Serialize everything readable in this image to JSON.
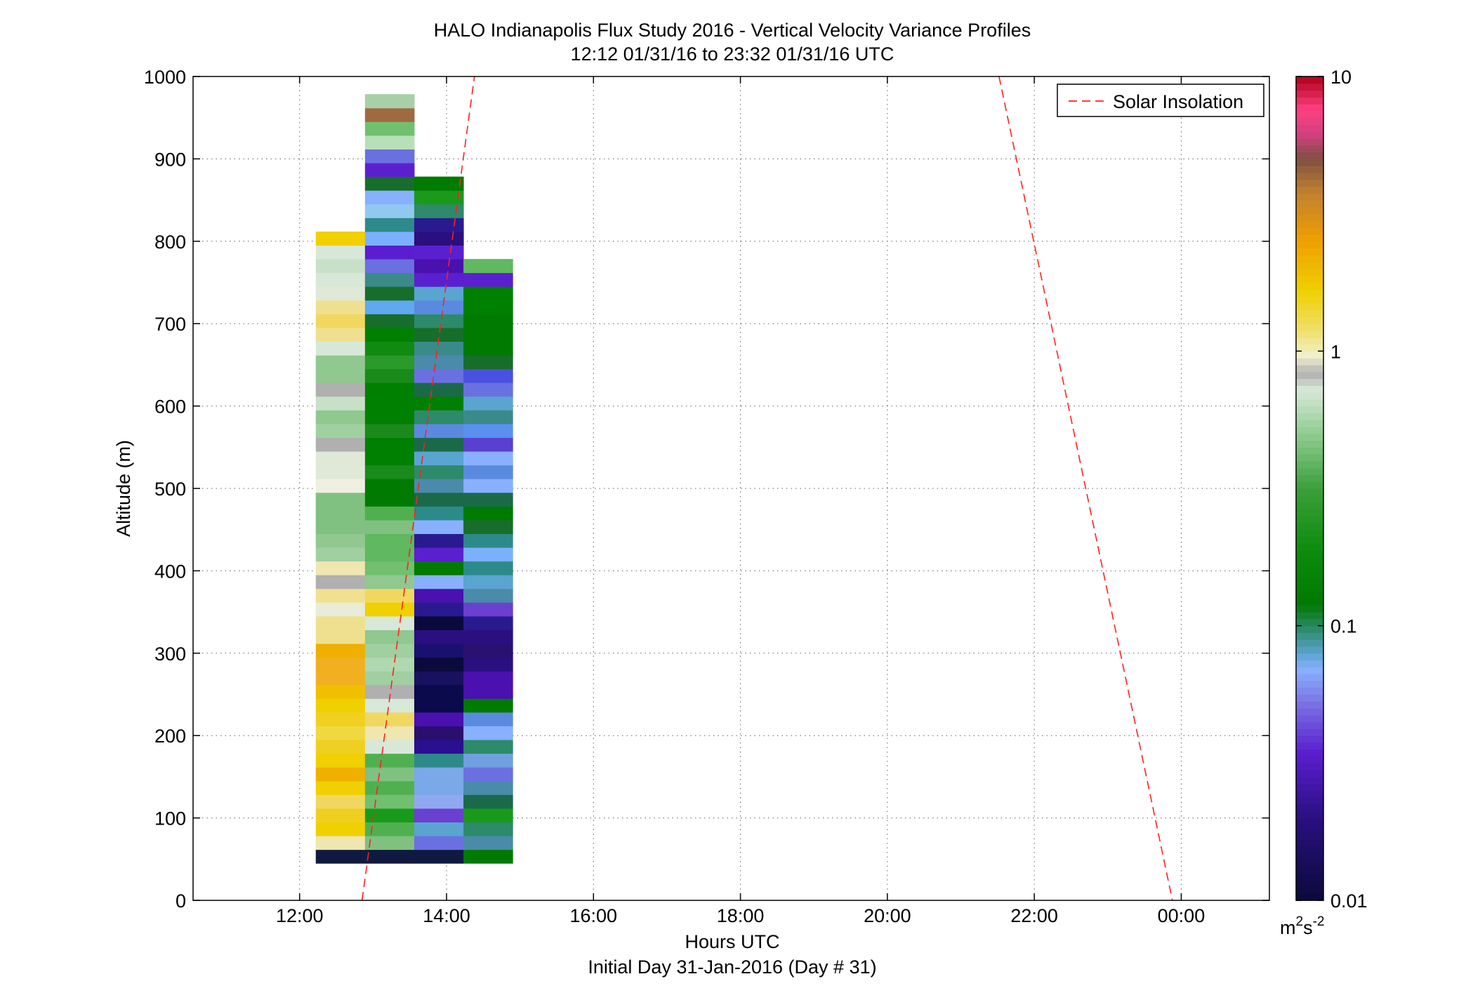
{
  "chart_data": {
    "type": "heatmap",
    "title": "HALO Indianapolis Flux Study 2016 - Vertical Velocity Variance Profiles",
    "subtitle": "12:12 01/31/16 to 23:32 01/31/16  UTC",
    "xlabel": "Hours UTC",
    "xlabel2": "Initial Day 31-Jan-2016 (Day # 31)",
    "ylabel": "Altitude (m)",
    "xlim": [
      10.55,
      25.2
    ],
    "ylim": [
      0,
      1000
    ],
    "x_ticks": [
      {
        "value": 12,
        "label": "12:00"
      },
      {
        "value": 14,
        "label": "14:00"
      },
      {
        "value": 16,
        "label": "16:00"
      },
      {
        "value": 18,
        "label": "18:00"
      },
      {
        "value": 20,
        "label": "20:00"
      },
      {
        "value": 22,
        "label": "22:00"
      },
      {
        "value": 24,
        "label": "00:00"
      }
    ],
    "y_ticks": [
      0,
      100,
      200,
      300,
      400,
      500,
      600,
      700,
      800,
      900,
      1000
    ],
    "grid": true,
    "legend": {
      "placement": "top-right",
      "entries": [
        {
          "label": "Solar Insolation",
          "color": "#ff2020",
          "style": "dashed"
        }
      ]
    },
    "solar_insolation": [
      {
        "x": [
          12.85,
          14.38
        ],
        "y": [
          0,
          1000
        ]
      },
      {
        "x": [
          21.52,
          23.88
        ],
        "y": [
          1000,
          0
        ]
      }
    ],
    "colorbar": {
      "scale": "log",
      "min": 0.01,
      "max": 10,
      "ticks": [
        {
          "value": 0.01,
          "label": "0.01"
        },
        {
          "value": 0.1,
          "label": "0.1"
        },
        {
          "value": 1,
          "label": "1"
        },
        {
          "value": 10,
          "label": "10"
        }
      ],
      "unit_base": "m",
      "unit_sup1": "2",
      "unit_mid": "s",
      "unit_sup2": "-2",
      "stops": [
        {
          "v": 0.0,
          "c": "#0a0a3c"
        },
        {
          "v": 0.1,
          "c": "#2a0f80"
        },
        {
          "v": 0.18,
          "c": "#5a1ed0"
        },
        {
          "v": 0.24,
          "c": "#7a74e4"
        },
        {
          "v": 0.28,
          "c": "#88b0ff"
        },
        {
          "v": 0.3,
          "c": "#5aa4d0"
        },
        {
          "v": 0.33,
          "c": "#2d8a6a"
        },
        {
          "v": 0.36,
          "c": "#007a00"
        },
        {
          "v": 0.42,
          "c": "#0b8a0b"
        },
        {
          "v": 0.5,
          "c": "#3aa03a"
        },
        {
          "v": 0.56,
          "c": "#88c888"
        },
        {
          "v": 0.62,
          "c": "#d8e8d8"
        },
        {
          "v": 0.64,
          "c": "#b0b0b0"
        },
        {
          "v": 0.66,
          "c": "#f0f0d0"
        },
        {
          "v": 0.69,
          "c": "#f0e070"
        },
        {
          "v": 0.74,
          "c": "#f0d000"
        },
        {
          "v": 0.8,
          "c": "#f0a000"
        },
        {
          "v": 0.86,
          "c": "#c08030"
        },
        {
          "v": 0.9,
          "c": "#805040"
        },
        {
          "v": 0.93,
          "c": "#d04080"
        },
        {
          "v": 0.96,
          "c": "#ff4080"
        },
        {
          "v": 1.0,
          "c": "#b0001a"
        }
      ]
    },
    "bin_height_m": 16.67,
    "columns": [
      {
        "x0": 12.22,
        "x1": 12.89,
        "z0": 45,
        "cells": [
          "#101a40",
          "#efe6b0",
          "#f0d000",
          "#efd020",
          "#f0d860",
          "#f0d000",
          "#f0b000",
          "#f0d000",
          "#efd020",
          "#f0d840",
          "#f0d020",
          "#f0d000",
          "#f0c000",
          "#f0b020",
          "#f0b020",
          "#f0b000",
          "#efe090",
          "#efe090",
          "#e8ecd8",
          "#f0e090",
          "#b0b0b0",
          "#efe6b0",
          "#a0d0a0",
          "#90c890",
          "#80c080",
          "#80c080",
          "#80c080",
          "#efefe0",
          "#e0e8d8",
          "#e0e8d8",
          "#b0b0b0",
          "#a0d0a0",
          "#90c890",
          "#c8e0c8",
          "#b0b0b0",
          "#90c890",
          "#90c890",
          "#d8e8d8",
          "#efe090",
          "#f0d860",
          "#efe090",
          "#e0e8d8",
          "#d8e8d8",
          "#c8e0c8",
          "#d8e8d8",
          "#f0d000"
        ]
      },
      {
        "x0": 12.89,
        "x1": 13.56,
        "z0": 45,
        "cells": [
          "#101a40",
          "#80c080",
          "#50b050",
          "#1a9a1a",
          "#70c070",
          "#50b050",
          "#80c080",
          "#50b050",
          "#d8e8d8",
          "#f0e6b0",
          "#efd860",
          "#d8e8d8",
          "#b0b0b0",
          "#a0d0a0",
          "#b0d8b0",
          "#a0d0a0",
          "#90c890",
          "#d8e8d8",
          "#f0d000",
          "#f0d860",
          "#90c890",
          "#70c070",
          "#60b860",
          "#60b860",
          "#80c080",
          "#50b050",
          "#007a00",
          "#007a00",
          "#1a8a1a",
          "#008000",
          "#008000",
          "#1a8a1a",
          "#008000",
          "#008000",
          "#008000",
          "#1a8a1a",
          "#2a9a2a",
          "#108a10",
          "#008000",
          "#176e2a",
          "#60a8f0",
          "#176e2a",
          "#3a8a8a",
          "#6a70e0",
          "#5a1ed0",
          "#7ab0ff",
          "#2d8a8a",
          "#90c8f0",
          "#88b0ff",
          "#176e2a",
          "#5a20d0",
          "#6a70e0",
          "#b8e0b8",
          "#70c070",
          "#a06a40",
          "#a8d0a8"
        ]
      },
      {
        "x0": 13.56,
        "x1": 14.23,
        "z0": 45,
        "cells": [
          "#101a40",
          "#6a70e0",
          "#5aa4d0",
          "#6a40d0",
          "#90a8f0",
          "#7aa8e8",
          "#7aa8e8",
          "#2d8a8a",
          "#2a0f90",
          "#2a0f70",
          "#4a10b0",
          "#0a0a4c",
          "#0a0a4c",
          "#1a1060",
          "#0a0a3c",
          "#1a1070",
          "#2a0f80",
          "#0a0a3c",
          "#2a1a90",
          "#4a10b0",
          "#88b0ff",
          "#007a00",
          "#5a20d0",
          "#2a1a90",
          "#88b0ff",
          "#2d8a8a",
          "#1a6a4a",
          "#4a8aaa",
          "#2d8a6a",
          "#5aa4d0",
          "#1a6a4a",
          "#5a8ae0",
          "#2d8a6a",
          "#008000",
          "#1a6a4a",
          "#6a70e0",
          "#4a8aaa",
          "#3a8a8a",
          "#176e2a",
          "#2d8a6a",
          "#5a8ae0",
          "#5aa4d0",
          "#5a20d0",
          "#4a10b0",
          "#5a20d0",
          "#2a0f80",
          "#2a1a90",
          "#2d8a6a",
          "#1a9a1a",
          "#007a00"
        ]
      },
      {
        "x0": 14.23,
        "x1": 14.9,
        "z0": 45,
        "cells": [
          "#007a00",
          "#4a8aaa",
          "#2d8a6a",
          "#1a9a1a",
          "#1a6a4a",
          "#4a8aaa",
          "#6a70e0",
          "#70a0e0",
          "#2d8a6a",
          "#88b0ff",
          "#5a8ae0",
          "#007a00",
          "#4a10b0",
          "#4a10b0",
          "#2a0f80",
          "#2a1070",
          "#2a0f80",
          "#2a1a90",
          "#6a40d0",
          "#4a8aaa",
          "#5aa4d0",
          "#2d8a8a",
          "#7ab0ff",
          "#2d8a8a",
          "#176e2a",
          "#007a00",
          "#1a6a4a",
          "#88b0ff",
          "#5a8ae0",
          "#88b0ff",
          "#5a40d0",
          "#5a90f0",
          "#3a8a8a",
          "#5aa4d0",
          "#6a70e0",
          "#4a50e0",
          "#176e2a",
          "#007a00",
          "#007a00",
          "#007a00",
          "#008000",
          "#008000",
          "#5a20d0",
          "#60b860"
        ]
      }
    ]
  }
}
